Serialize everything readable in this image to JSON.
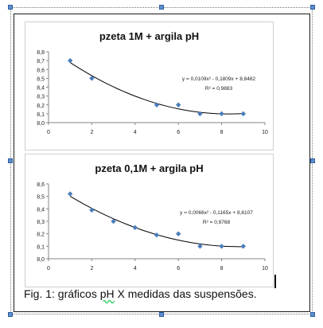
{
  "caption": {
    "prefix": "Fig. 1: gráficos ",
    "ph_word": "pH",
    "suffix": "  X medidas das suspensões."
  },
  "colors": {
    "marker": "#4a7ebb",
    "trend": "#000000",
    "selection_handle": "#5b8fd1"
  },
  "chart_data": [
    {
      "type": "scatter",
      "title": "pzeta 1M + argila pH",
      "equation": "y = 0,0109x² - 0,1809x + 8,8482",
      "r2": "R² = 0,9883",
      "x_ticks": [
        "0",
        "2",
        "4",
        "6",
        "8",
        "10"
      ],
      "y_ticks": [
        "8,0",
        "8,1",
        "8,2",
        "8,3",
        "8,4",
        "8,5",
        "8,6",
        "8,7",
        "8,8"
      ],
      "xlim": [
        0,
        10
      ],
      "ylim": [
        8.0,
        8.8
      ],
      "points": [
        {
          "x": 1,
          "y": 8.7
        },
        {
          "x": 2,
          "y": 8.5
        },
        {
          "x": 5,
          "y": 8.2
        },
        {
          "x": 6,
          "y": 8.2
        },
        {
          "x": 7,
          "y": 8.1
        },
        {
          "x": 8,
          "y": 8.1
        },
        {
          "x": 9,
          "y": 8.1
        }
      ],
      "trendline": {
        "type": "polynomial-2",
        "a": 0.0109,
        "b": -0.1809,
        "c": 8.8482,
        "x_range": [
          1,
          9
        ]
      },
      "grid": false,
      "legend": "none"
    },
    {
      "type": "scatter",
      "title": "pzeta 0,1M + argila pH",
      "equation": "y = 0,0066x² - 0,1165x + 8,6107",
      "r2": "R² = 0,9768",
      "x_ticks": [
        "0",
        "2",
        "4",
        "6",
        "8",
        "10"
      ],
      "y_ticks": [
        "8,0",
        "8,1",
        "8,2",
        "8,3",
        "8,4",
        "8,5",
        "8,6"
      ],
      "xlim": [
        0,
        10
      ],
      "ylim": [
        8.0,
        8.6
      ],
      "points": [
        {
          "x": 1,
          "y": 8.52
        },
        {
          "x": 2,
          "y": 8.39
        },
        {
          "x": 3,
          "y": 8.3
        },
        {
          "x": 4,
          "y": 8.25
        },
        {
          "x": 5,
          "y": 8.19
        },
        {
          "x": 6,
          "y": 8.2
        },
        {
          "x": 7,
          "y": 8.1
        },
        {
          "x": 8,
          "y": 8.1
        },
        {
          "x": 9,
          "y": 8.1
        }
      ],
      "trendline": {
        "type": "polynomial-2",
        "a": 0.0066,
        "b": -0.1165,
        "c": 8.6107,
        "x_range": [
          1,
          9
        ]
      },
      "grid": false,
      "legend": "none"
    }
  ]
}
